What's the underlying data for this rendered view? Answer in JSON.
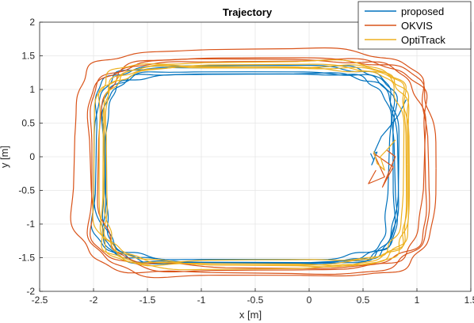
{
  "chart_data": {
    "type": "line",
    "title": "Trajectory",
    "xlabel": "x [m]",
    "ylabel": "y [m]",
    "xlim": [
      -2.5,
      1.5
    ],
    "ylim": [
      -2,
      2
    ],
    "xticks": [
      "-2.5",
      "-2",
      "-1.5",
      "-1",
      "-0.5",
      "0",
      "0.5",
      "1",
      "1.5"
    ],
    "yticks": [
      "-2",
      "-1.5",
      "-1",
      "-0.5",
      "0",
      "0.5",
      "1",
      "1.5",
      "2"
    ],
    "grid": true,
    "legend": "top-right",
    "series": [
      {
        "name": "proposed",
        "color": "#0072BD",
        "loop": {
          "cx": -0.58,
          "cy": -0.14,
          "rx": 1.36,
          "ry": 1.42,
          "exponent": 6
        },
        "laps": [
          {
            "scale": 0.97,
            "dx": 0.0,
            "dy": 0.0
          },
          {
            "scale": 1.0,
            "dx": 0.02,
            "dy": -0.02
          },
          {
            "scale": 1.03,
            "dx": -0.02,
            "dy": 0.02
          },
          {
            "scale": 0.99,
            "dx": 0.04,
            "dy": -0.04
          },
          {
            "scale": 1.02,
            "dx": 0.0,
            "dy": 0.03
          }
        ],
        "tail": {
          "x": [
            0.57,
            0.6,
            0.58,
            0.63,
            0.6,
            0.67,
            0.75,
            0.83,
            0.9
          ],
          "y": [
            0.05,
            -0.05,
            -0.12,
            0.07,
            0.05,
            0.3,
            0.45,
            0.62,
            0.85
          ]
        }
      },
      {
        "name": "OKVIS",
        "color": "#D95319",
        "loop": {
          "cx": -0.5,
          "cy": -0.12,
          "rx": 1.58,
          "ry": 1.6,
          "exponent": 5
        },
        "laps": [
          {
            "scale": 0.98,
            "dx": 0.0,
            "dy": 0.0
          },
          {
            "scale": 1.01,
            "dx": 0.05,
            "dy": -0.05
          },
          {
            "scale": 1.04,
            "dx": -0.04,
            "dy": 0.04
          },
          {
            "scale": 0.96,
            "dx": 0.08,
            "dy": 0.02
          }
        ],
        "tail": {
          "x": [
            0.62,
            0.55,
            0.7,
            0.6,
            0.78,
            0.68,
            0.8,
            0.72
          ],
          "y": [
            -0.2,
            -0.4,
            -0.3,
            0.05,
            -0.15,
            -0.45,
            0.0,
            0.1
          ]
        }
      },
      {
        "name": "OptiTrack",
        "color": "#EDB120",
        "loop": {
          "cx": -0.52,
          "cy": -0.12,
          "rx": 1.42,
          "ry": 1.48,
          "exponent": 6
        },
        "laps": [
          {
            "scale": 0.97,
            "dx": 0.0,
            "dy": 0.0
          },
          {
            "scale": 1.0,
            "dx": 0.02,
            "dy": -0.02
          },
          {
            "scale": 1.02,
            "dx": -0.02,
            "dy": 0.02
          },
          {
            "scale": 0.99,
            "dx": 0.03,
            "dy": 0.01
          },
          {
            "scale": 1.01,
            "dx": 0.0,
            "dy": -0.03
          }
        ],
        "tail": {
          "x": [
            0.6,
            0.63,
            0.7,
            0.66,
            0.72,
            0.8
          ],
          "y": [
            0.08,
            -0.1,
            -0.2,
            0.0,
            0.1,
            0.25
          ]
        }
      }
    ]
  }
}
